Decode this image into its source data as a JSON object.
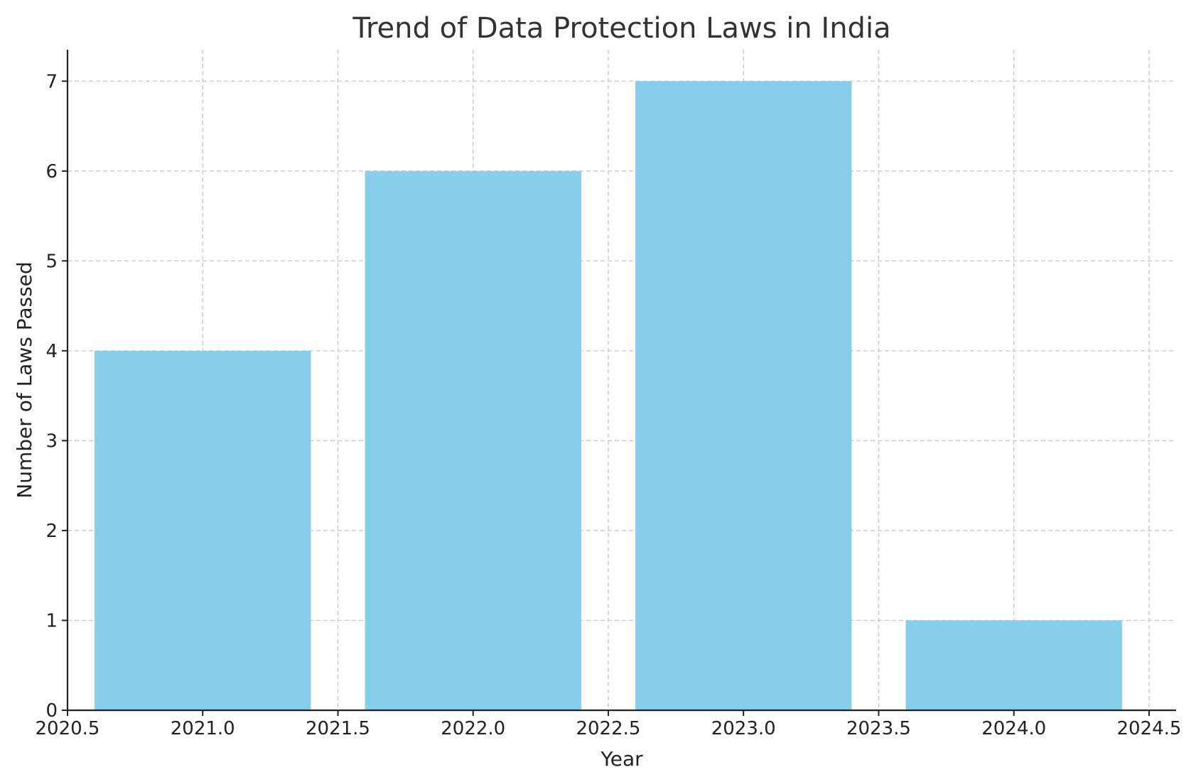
{
  "chart_data": {
    "type": "bar",
    "title": "Trend of Data Protection Laws in India",
    "xlabel": "Year",
    "ylabel": "Number of Laws Passed",
    "x": [
      2021,
      2022,
      2023,
      2024
    ],
    "values": [
      4,
      6,
      7,
      1
    ],
    "bar_width": 0.8,
    "xlim": [
      2020.5,
      2024.6
    ],
    "ylim": [
      0,
      7.35
    ],
    "xticks": [
      2020.5,
      2021.0,
      2021.5,
      2022.0,
      2022.5,
      2023.0,
      2023.5,
      2024.0,
      2024.5
    ],
    "xtick_labels": [
      "2020.5",
      "2021.0",
      "2021.5",
      "2022.0",
      "2022.5",
      "2023.0",
      "2023.5",
      "2024.0",
      "2024.5"
    ],
    "yticks": [
      0,
      1,
      2,
      3,
      4,
      5,
      6,
      7
    ],
    "ytick_labels": [
      "0",
      "1",
      "2",
      "3",
      "4",
      "5",
      "6",
      "7"
    ],
    "grid": true,
    "colors": {
      "bar": "#87ceeb",
      "grid": "#c8c8c8",
      "axis": "#222222",
      "title": "#333333"
    }
  }
}
